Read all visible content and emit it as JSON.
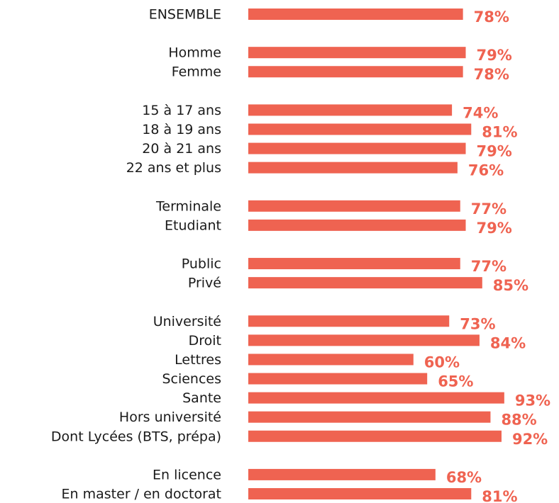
{
  "chart_data": {
    "type": "hbar",
    "color": "#ef6351",
    "xlim": [
      0,
      100
    ],
    "categories": [
      "ENSEMBLE",
      null,
      "Homme",
      "Femme",
      null,
      "15 à 17 ans",
      "18 à 19 ans",
      "20 à 21 ans",
      "22 ans et plus",
      null,
      "Terminale",
      "Etudiant",
      null,
      "Public",
      "Privé",
      null,
      "Université",
      "Droit",
      "Lettres",
      "Sciences",
      "Sante",
      "Hors université",
      "Dont Lycées (BTS, prépa)",
      null,
      "En licence",
      "En master / en doctorat"
    ],
    "values": [
      78,
      null,
      79,
      78,
      null,
      74,
      81,
      79,
      76,
      null,
      77,
      79,
      null,
      77,
      85,
      null,
      73,
      84,
      60,
      65,
      93,
      88,
      92,
      null,
      68,
      81
    ],
    "value_labels": [
      "78%",
      null,
      "79%",
      "78%",
      null,
      "74%",
      "81%",
      "79%",
      "76%",
      null,
      "77%",
      "79%",
      null,
      "77%",
      "85%",
      null,
      "73%",
      "84%",
      "60%",
      "65%",
      "93%",
      "88%",
      "92%",
      null,
      "68%",
      "81%"
    ]
  }
}
